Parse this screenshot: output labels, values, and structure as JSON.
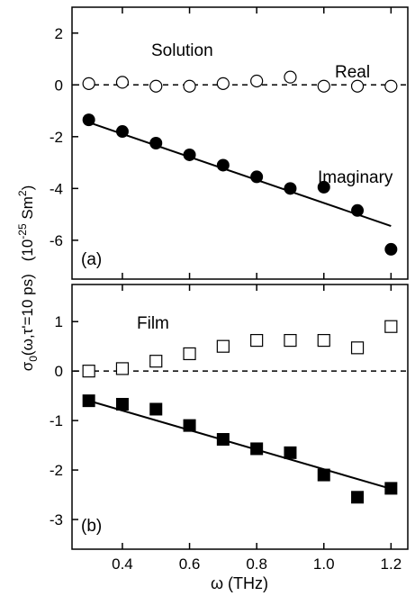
{
  "chart_data": [
    {
      "type": "scatter",
      "panel_label": "(a)",
      "annotation": "Solution",
      "xlim": [
        0.25,
        1.25
      ],
      "ylim": [
        -7.5,
        3
      ],
      "yticks": [
        2,
        0,
        -2,
        -4,
        -6
      ],
      "ytick_labels": [
        "2",
        "0",
        "-2",
        "-4",
        "-6"
      ],
      "x": [
        0.3,
        0.4,
        0.5,
        0.6,
        0.7,
        0.8,
        0.9,
        1.0,
        1.1,
        1.2
      ],
      "series": [
        {
          "name": "Real",
          "marker": "open-circle",
          "values": [
            0.05,
            0.1,
            -0.05,
            -0.05,
            0.05,
            0.15,
            0.3,
            -0.05,
            -0.05,
            -0.05
          ]
        },
        {
          "name": "Imaginary",
          "marker": "filled-circle",
          "values": [
            -1.35,
            -1.8,
            -2.25,
            -2.7,
            -3.1,
            -3.55,
            -4.0,
            -3.95,
            -4.85,
            -6.35
          ],
          "fit_line": {
            "x": [
              0.3,
              1.2
            ],
            "y": [
              -1.45,
              -5.45
            ]
          }
        }
      ],
      "reference_line": {
        "y": 0,
        "style": "dashed"
      }
    },
    {
      "type": "scatter",
      "panel_label": "(b)",
      "annotation": "Film",
      "xlim": [
        0.25,
        1.25
      ],
      "ylim": [
        -3.6,
        1.75
      ],
      "yticks": [
        1,
        0,
        -1,
        -2,
        -3
      ],
      "ytick_labels": [
        "1",
        "0",
        "-1",
        "-2",
        "-3"
      ],
      "x": [
        0.3,
        0.4,
        0.5,
        0.6,
        0.7,
        0.8,
        0.9,
        1.0,
        1.1,
        1.2
      ],
      "series": [
        {
          "marker": "open-square",
          "values": [
            0.0,
            0.05,
            0.2,
            0.35,
            0.5,
            0.62,
            0.62,
            0.62,
            0.47,
            0.9
          ]
        },
        {
          "marker": "filled-square",
          "values": [
            -0.6,
            -0.67,
            -0.77,
            -1.1,
            -1.38,
            -1.57,
            -1.65,
            -2.1,
            -2.55,
            -2.37
          ],
          "fit_line": {
            "x": [
              0.3,
              1.2
            ],
            "y": [
              -0.6,
              -2.38
            ]
          }
        }
      ],
      "reference_line": {
        "y": 0,
        "style": "dashed"
      }
    }
  ],
  "x_axis": {
    "label": "ω (THz)",
    "ticks": [
      0.4,
      0.6,
      0.8,
      1.0,
      1.2
    ],
    "tick_labels": [
      "0.4",
      "0.6",
      "0.8",
      "1.0",
      "1.2"
    ]
  },
  "y_axis": {
    "label_main": "σ",
    "label_sub": "0",
    "label_args": "(ω,τ'=10 ps)",
    "label_unit_pre": "(10",
    "label_unit_exp": "-25",
    "label_unit_mid": " Sm",
    "label_unit_exp2": "2",
    "label_unit_post": ")"
  }
}
